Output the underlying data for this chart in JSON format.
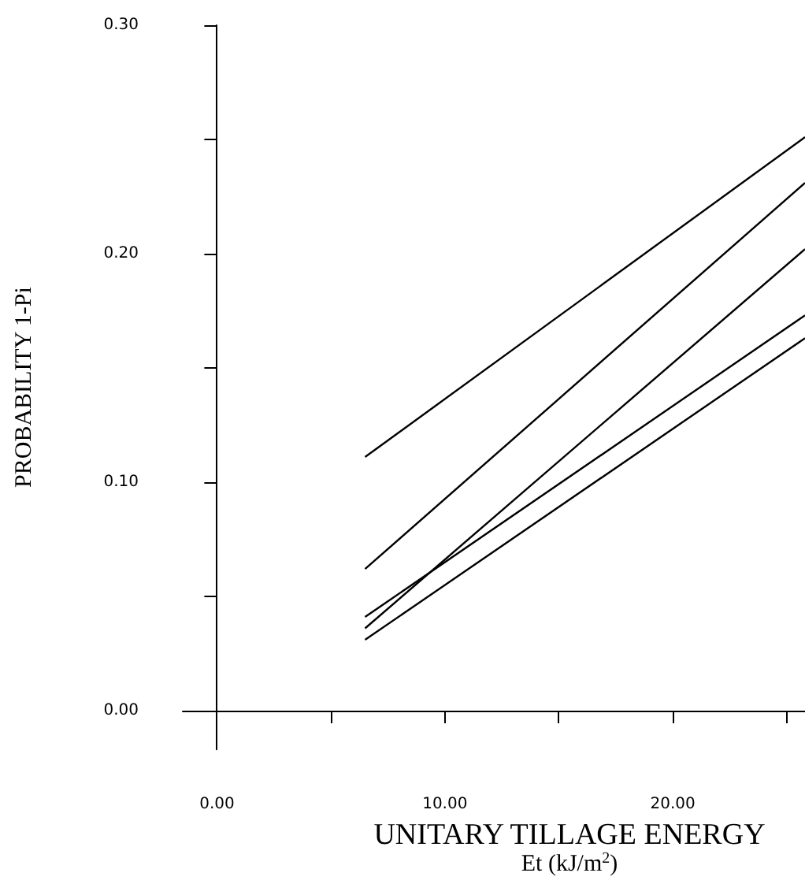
{
  "chart_data": {
    "type": "line",
    "xlabel": "UNITARY TILLAGE ENERGY\nEt (kJ/m$^{2}$)",
    "ylabel": "PROBABILITY 1-Pi",
    "xlim": [
      -1.5,
      25.8
    ],
    "ylim": [
      -0.017,
      0.3
    ],
    "xticks": [
      {
        "value": 0,
        "label": "0.00"
      },
      {
        "value": 5,
        "label": null
      },
      {
        "value": 10,
        "label": "10.00"
      },
      {
        "value": 15,
        "label": null
      },
      {
        "value": 20,
        "label": "20.00"
      },
      {
        "value": 25,
        "label": null
      }
    ],
    "yticks": [
      {
        "value": 0,
        "label": "0.00"
      },
      {
        "value": 0.05,
        "label": null
      },
      {
        "value": 0.1,
        "label": "0.10"
      },
      {
        "value": 0.15,
        "label": null
      },
      {
        "value": 0.2,
        "label": "0.20"
      },
      {
        "value": 0.25,
        "label": null
      },
      {
        "value": 0.3,
        "label": "0.30"
      }
    ],
    "marker": "none",
    "line_style": "solid",
    "x": [
      6.5,
      25.8
    ],
    "series": [
      {
        "color": "#000000",
        "values": [
          0.111,
          0.251
        ]
      },
      {
        "color": "#000000",
        "values": [
          0.062,
          0.231
        ]
      },
      {
        "color": "#000000",
        "values": [
          0.036,
          0.202
        ]
      },
      {
        "color": "#000000",
        "values": [
          0.041,
          0.173
        ]
      },
      {
        "color": "#000000",
        "values": [
          0.031,
          0.163
        ]
      }
    ]
  }
}
